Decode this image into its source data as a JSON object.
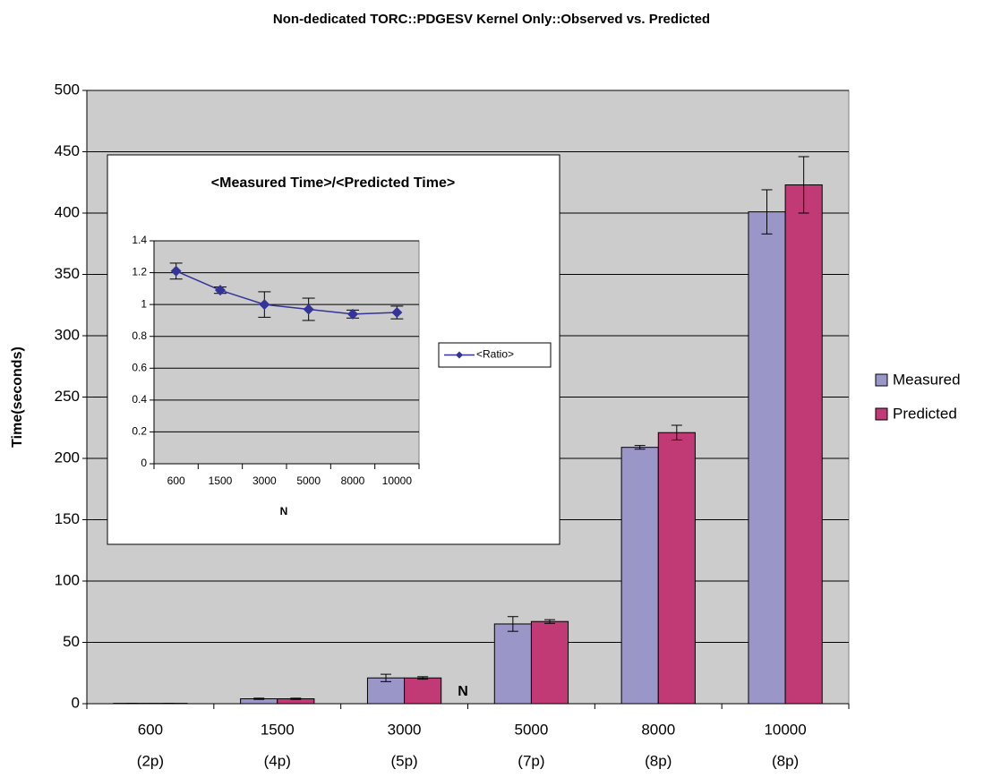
{
  "chart_data": [
    {
      "type": "bar",
      "title": "Non-dedicated TORC::PDGESV Kernel Only::Observed vs. Predicted",
      "x_label": "N",
      "y_label": "Time(seconds)",
      "categories": [
        "600",
        "1500",
        "3000",
        "5000",
        "8000",
        "10000"
      ],
      "sublabels": [
        "(2p)",
        "(4p)",
        "(5p)",
        "(7p)",
        "(8p)",
        "(8p)"
      ],
      "series": [
        {
          "name": "Measured",
          "color": "#9b96c8",
          "values": [
            0.3,
            4,
            21,
            65,
            209,
            401
          ],
          "errors": [
            0,
            0.5,
            3,
            6,
            1.5,
            18
          ]
        },
        {
          "name": "Predicted",
          "color": "#c13a76",
          "values": [
            0.3,
            4,
            21,
            67,
            221,
            423
          ],
          "errors": [
            0,
            0.5,
            1,
            1.5,
            6,
            23
          ]
        }
      ],
      "ylim": [
        0,
        500
      ],
      "yticks": [
        0,
        50,
        100,
        150,
        200,
        250,
        300,
        350,
        400,
        450,
        500
      ],
      "grid": true,
      "legend": "right"
    },
    {
      "type": "line",
      "title": "<Measured Time>/<Predicted Time>",
      "x_label": "N",
      "categories": [
        "600",
        "1500",
        "3000",
        "5000",
        "8000",
        "10000"
      ],
      "series": [
        {
          "name": "<Ratio>",
          "color": "#333399",
          "values": [
            1.21,
            1.09,
            1.0,
            0.97,
            0.94,
            0.95
          ],
          "errors": [
            0.05,
            0.02,
            0.08,
            0.07,
            0.025,
            0.04
          ]
        }
      ],
      "ylim": [
        0,
        1.4
      ],
      "yticks": [
        0,
        0.2,
        0.4,
        0.6,
        0.8,
        1,
        1.2,
        1.4
      ],
      "grid": true,
      "legend": "right"
    }
  ]
}
